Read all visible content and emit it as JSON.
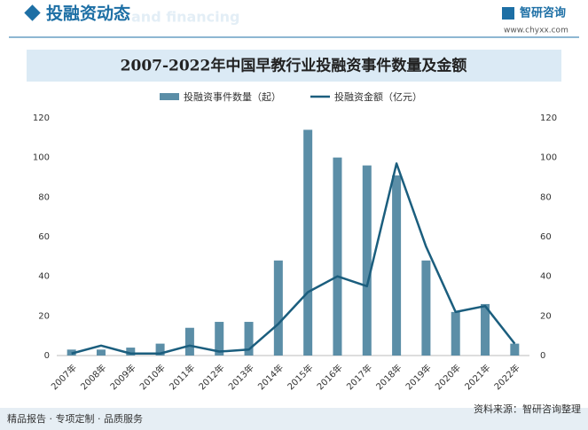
{
  "header": {
    "title": "投融资动态",
    "subtitle": "and financing",
    "brand": "智研咨询",
    "url": "www.chyxx.com"
  },
  "chart_data": {
    "type": "bar",
    "title": "2007-2022年中国早教行业投融资事件数量及金额",
    "categories": [
      "2007年",
      "2008年",
      "2009年",
      "2010年",
      "2011年",
      "2012年",
      "2013年",
      "2014年",
      "2015年",
      "2016年",
      "2017年",
      "2018年",
      "2019年",
      "2020年",
      "2021年",
      "2022年"
    ],
    "series": [
      {
        "name": "投融资事件数量（起）",
        "type": "bar",
        "color": "#5b8ea7",
        "values": [
          3,
          3,
          4,
          6,
          14,
          17,
          17,
          48,
          114,
          100,
          96,
          91,
          48,
          22,
          26,
          6
        ]
      },
      {
        "name": "投融资金额（亿元）",
        "type": "line",
        "axis": "y2",
        "color": "#1b5e7e",
        "values": [
          1,
          5,
          1,
          1,
          5,
          2,
          3,
          16,
          32,
          40,
          35,
          97,
          55,
          22,
          25,
          6
        ]
      }
    ],
    "ylim": [
      0,
      120
    ],
    "yticks": [
      0,
      20,
      40,
      60,
      80,
      100,
      120
    ],
    "y2lim": [
      0,
      120
    ],
    "y2ticks": [
      0,
      20,
      40,
      60,
      80,
      100,
      120
    ],
    "grid": false,
    "legend": "top"
  },
  "footer": {
    "left": "精品报告 · 专项定制 · 品质服务",
    "right": "资料来源：智研咨询整理"
  }
}
